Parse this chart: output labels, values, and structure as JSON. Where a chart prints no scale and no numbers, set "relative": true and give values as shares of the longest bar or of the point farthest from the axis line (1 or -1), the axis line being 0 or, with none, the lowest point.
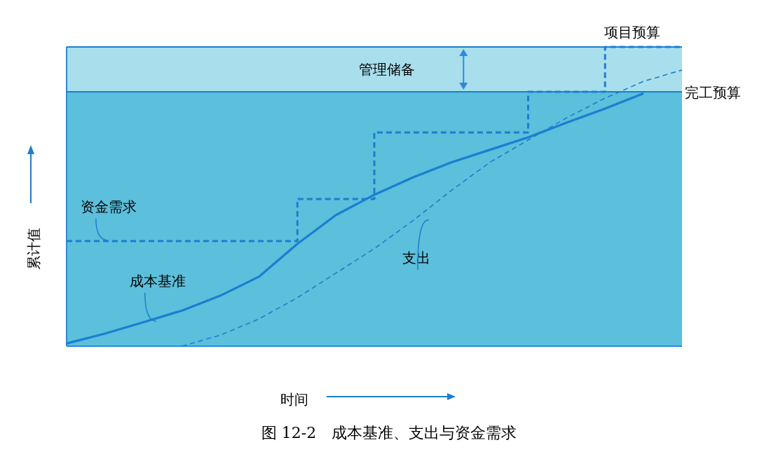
{
  "chart_data": {
    "type": "line",
    "relative": true,
    "categories": [
      null,
      null,
      null,
      null,
      null,
      null,
      null,
      null,
      null,
      null,
      null,
      null,
      null,
      null,
      null,
      null,
      null
    ],
    "xlabel": "时间",
    "ylabel": "累计值",
    "legend": false,
    "marker": "none",
    "series": [
      {
        "name": "资金需求",
        "type": "step",
        "color": "#1a7fd0",
        "line_style": "dashed",
        "values": [
          0.351,
          0.351,
          0.351,
          0.351,
          0.351,
          0.351,
          0.492,
          0.492,
          0.714,
          0.714,
          0.714,
          0.714,
          0.85,
          0.85,
          1.0,
          1.0,
          1.0
        ]
      },
      {
        "name": "成本基准",
        "type": "line",
        "color": "#1a7fd0",
        "line_style": "solid",
        "values": [
          0.009,
          0.042,
          0.08,
          0.119,
          0.169,
          0.232,
          0.342,
          0.438,
          0.506,
          0.564,
          0.614,
          0.656,
          0.698,
          0.747,
          0.794,
          0.845,
          null
        ]
      },
      {
        "name": "支出",
        "type": "line",
        "color": "#1a7fd0",
        "line_style": "dashed",
        "values": [
          null,
          null,
          null,
          0.0,
          0.037,
          0.091,
          0.162,
          0.244,
          0.326,
          0.419,
          0.52,
          0.614,
          0.689,
          0.763,
          0.829,
          0.885,
          0.923
        ]
      }
    ],
    "ref_lines": [
      {
        "axis": "y",
        "value": 1,
        "label": "项目预算",
        "color": "#1a7fd0"
      },
      {
        "axis": "y",
        "value": 0.85,
        "label": "完工预算",
        "color": "#1a7fd0"
      }
    ],
    "bands": [
      {
        "axis": "y",
        "from": 0,
        "to": 0.85,
        "color": "#5cbfdb"
      },
      {
        "axis": "y",
        "from": 0.85,
        "to": 1,
        "label": "管理储备",
        "color": "#a9deec"
      }
    ],
    "annotations": [
      "图 12-2　成本基准、支出与资金需求"
    ]
  }
}
